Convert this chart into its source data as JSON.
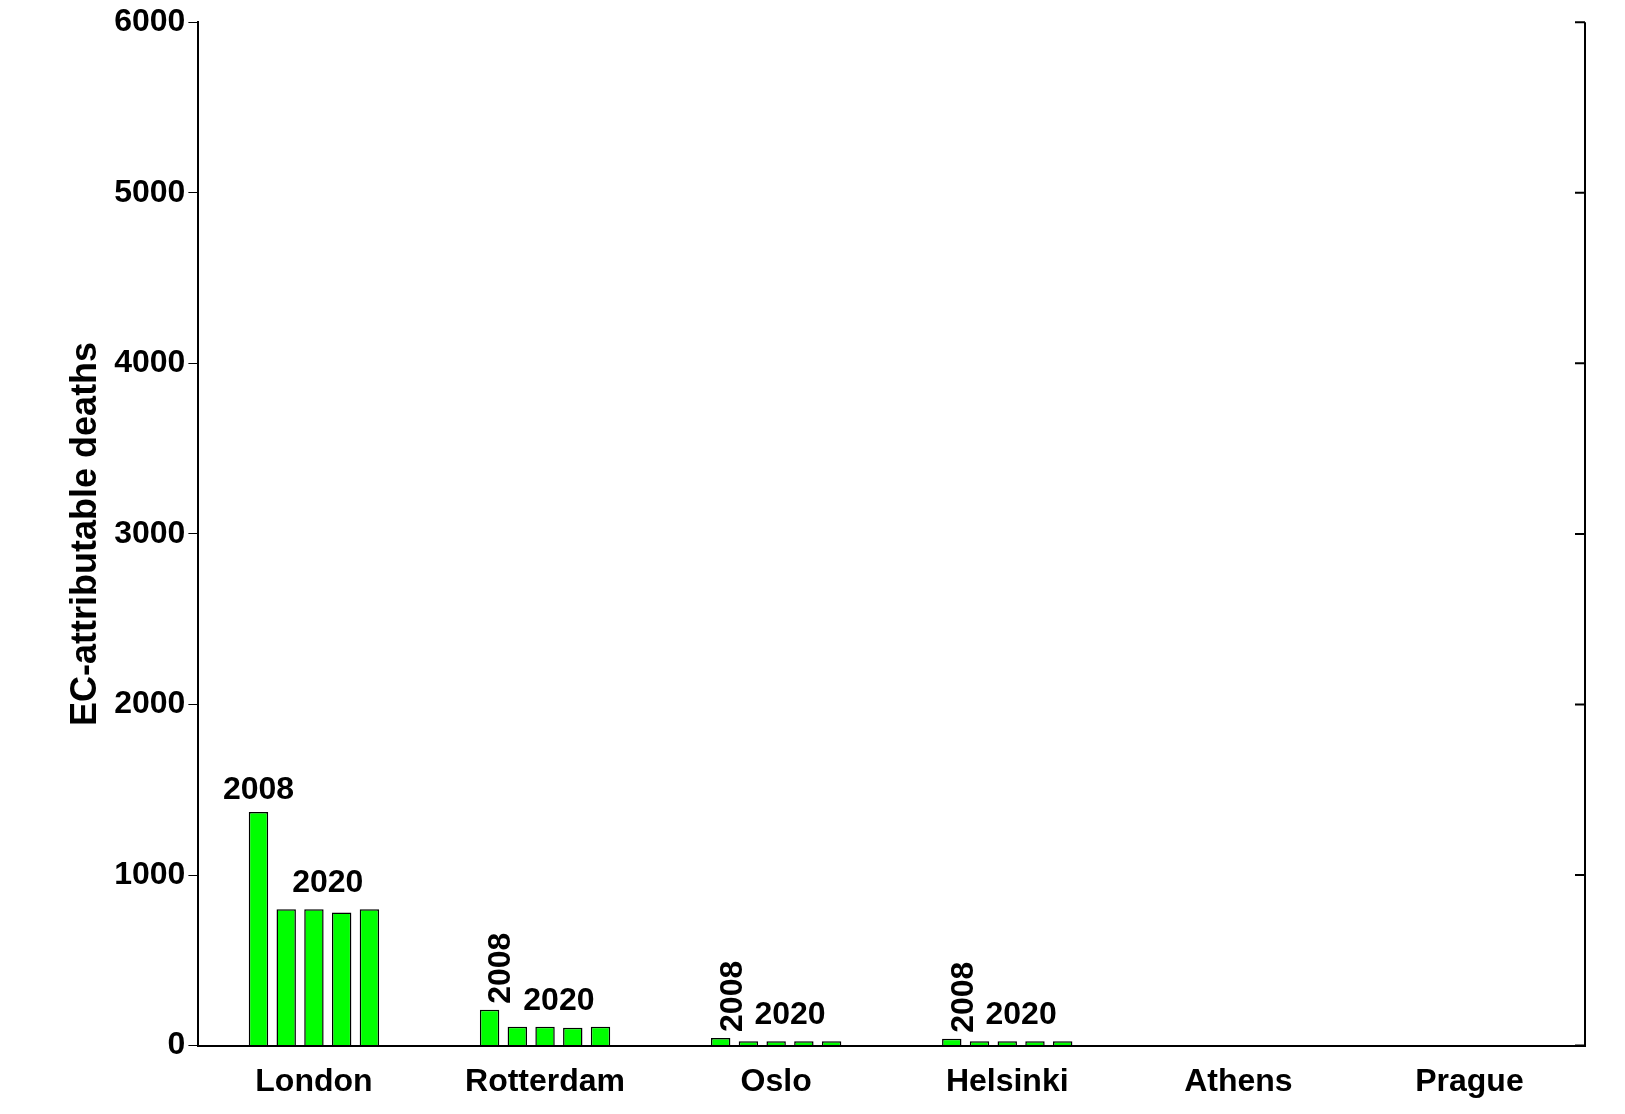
{
  "chart_data": {
    "type": "bar",
    "ylabel": "EC-attributable deaths",
    "categories": [
      "London",
      "Rotterdam",
      "Oslo",
      "Helsinki",
      "Athens",
      "Prague"
    ],
    "series": [
      {
        "color": "#00ff00",
        "values": [
          1370,
          210,
          45,
          40,
          null,
          null
        ]
      },
      {
        "color": "#00ff00",
        "values": [
          800,
          110,
          25,
          25,
          null,
          null
        ]
      },
      {
        "color": "#00ff00",
        "values": [
          800,
          110,
          25,
          25,
          null,
          null
        ]
      },
      {
        "color": "#00ff00",
        "values": [
          780,
          105,
          25,
          25,
          null,
          null
        ]
      },
      {
        "color": "#00ff00",
        "values": [
          800,
          110,
          25,
          25,
          null,
          null
        ]
      }
    ],
    "ylim": [
      0,
      6000
    ],
    "yticks": [
      0,
      1000,
      2000,
      3000,
      4000,
      5000,
      6000
    ],
    "grid": false,
    "legend": false,
    "annotations": [
      "2008",
      "2020",
      "2008",
      "2020",
      "2008",
      "2020",
      "2008",
      "2020"
    ]
  }
}
